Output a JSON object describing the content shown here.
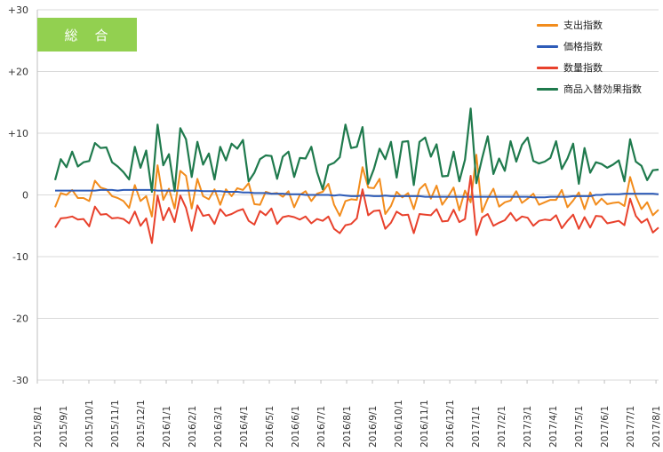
{
  "chart_data": {
    "type": "line",
    "title": "総　合",
    "ylim": [
      -30,
      30
    ],
    "y_ticks": [
      "+30",
      "+20",
      "+10",
      "0",
      "-10",
      "-20",
      "-30"
    ],
    "x_tick_labels": [
      "2015/8/1",
      "2015/9/1",
      "2015/10/1",
      "2015/11/1",
      "2015/12/1",
      "2016/1/1",
      "2016/2/1",
      "2016/3/1",
      "2016/4/1",
      "2016/5/1",
      "2016/6/1",
      "2016/7/1",
      "2016/8/1",
      "2016/9/1",
      "2016/10/1",
      "2016/11/1",
      "2016/12/1",
      "2017/1/1",
      "2017/2/1",
      "2017/3/1",
      "2017/4/1",
      "2017/5/1",
      "2017/6/1",
      "2017/7/1",
      "2017/8/1"
    ],
    "legend_position": "top-right",
    "grid": "horizontal",
    "series": [
      {
        "name": "支出指数",
        "color": "#f28c1c",
        "values": [
          -2,
          0.3,
          0,
          0.8,
          -0.5,
          -0.5,
          -1,
          2.3,
          1.2,
          0.9,
          -0.2,
          -0.5,
          -1,
          -2.1,
          1.6,
          -1,
          -0.2,
          -3.5,
          4.8,
          -0.8,
          1,
          -2.2,
          3.9,
          3.1,
          -2.2,
          2.6,
          -0.2,
          -0.7,
          0.9,
          -1.6,
          0.9,
          -0.2,
          1.1,
          0.8,
          1.9,
          -1.5,
          -1.6,
          0.5,
          0.2,
          0.3,
          -0.3,
          0.6,
          -2,
          0,
          0.6,
          -1,
          0.2,
          0.5,
          1.8,
          -1.6,
          -3.4,
          -1,
          -0.7,
          -0.8,
          4.5,
          1.2,
          1.1,
          2.6,
          -3.1,
          -1.8,
          0.5,
          -0.4,
          0.3,
          -2.3,
          0.9,
          1.8,
          -0.6,
          1.5,
          -1.6,
          -0.3,
          1.2,
          -2.5,
          0.7,
          -1.2,
          6.5,
          -2.8,
          -0.6,
          1,
          -1.9,
          -1.2,
          -0.9,
          0.6,
          -1.3,
          -0.6,
          0.2,
          -1.6,
          -1.2,
          -0.8,
          -0.8,
          0.8,
          -2,
          -0.9,
          0.4,
          -2.3,
          0.4,
          -1.6,
          -0.6,
          -1.5,
          -1.3,
          -1.2,
          -1.8,
          2.9,
          -0.2,
          -2.3,
          -1.2,
          -3.3,
          -2.4
        ]
      },
      {
        "name": "価格指数",
        "color": "#2e5cb8",
        "values": [
          0.7,
          0.7,
          0.7,
          0.7,
          0.7,
          0.7,
          0.7,
          0.7,
          0.8,
          0.8,
          0.8,
          0.7,
          0.8,
          0.8,
          0.8,
          0.8,
          0.8,
          0.8,
          0.7,
          0.7,
          0.7,
          0.7,
          0.7,
          0.7,
          0.7,
          0.7,
          0.6,
          0.6,
          0.6,
          0.6,
          0.5,
          0.5,
          0.5,
          0.4,
          0.4,
          0.3,
          0.3,
          0.3,
          0.2,
          0.2,
          0.2,
          0.1,
          0.1,
          0.1,
          0,
          0,
          0,
          0,
          0,
          -0.1,
          0,
          -0.1,
          -0.2,
          -0.2,
          -0.1,
          -0.1,
          -0.2,
          -0.2,
          -0.1,
          -0.2,
          -0.2,
          -0.2,
          -0.2,
          -0.2,
          -0.2,
          -0.3,
          -0.3,
          -0.3,
          -0.3,
          -0.3,
          -0.3,
          -0.3,
          -0.3,
          -0.3,
          -0.3,
          -0.3,
          -0.3,
          -0.3,
          -0.3,
          -0.3,
          -0.3,
          -0.3,
          -0.3,
          -0.3,
          -0.4,
          -0.4,
          -0.4,
          -0.3,
          -0.3,
          -0.3,
          -0.3,
          -0.2,
          -0.2,
          -0.2,
          -0.2,
          0,
          0,
          0.1,
          0.1,
          0.1,
          0.2,
          0.2,
          0.2,
          0.2,
          0.2,
          0.2,
          0.1
        ]
      },
      {
        "name": "数量指数",
        "color": "#e8412c",
        "values": [
          -5.3,
          -3.8,
          -3.7,
          -3.5,
          -4,
          -3.9,
          -5.1,
          -1.9,
          -3.2,
          -3.1,
          -3.8,
          -3.7,
          -3.9,
          -4.6,
          -2.7,
          -5,
          -3.8,
          -7.8,
          -0.1,
          -4.1,
          -2.1,
          -4.4,
          -0.1,
          -2.1,
          -5.8,
          -1.7,
          -3.4,
          -3.2,
          -4.7,
          -2.3,
          -3.4,
          -3.1,
          -2.6,
          -2.3,
          -4.2,
          -4.8,
          -2.6,
          -3.3,
          -2.2,
          -4.7,
          -3.6,
          -3.4,
          -3.6,
          -4,
          -3.5,
          -4.6,
          -3.9,
          -4.2,
          -3.5,
          -5.5,
          -6.2,
          -4.9,
          -4.7,
          -3.8,
          0.9,
          -3.3,
          -2.6,
          -2.5,
          -5.5,
          -4.5,
          -2.7,
          -3.3,
          -3.2,
          -6.2,
          -3.1,
          -3.2,
          -3.3,
          -2.3,
          -4.3,
          -4.2,
          -2.4,
          -4.4,
          -3.9,
          3.1,
          -6.5,
          -3.7,
          -3.1,
          -5,
          -4.5,
          -4.1,
          -2.9,
          -4.2,
          -3.5,
          -3.7,
          -5,
          -4.2,
          -4,
          -4.1,
          -3.3,
          -5.4,
          -4.2,
          -3.2,
          -5.5,
          -3.6,
          -5.3,
          -3.4,
          -3.5,
          -4.6,
          -4.4,
          -4.2,
          -4.9,
          -0.6,
          -3.4,
          -4.5,
          -3.9,
          -6.1,
          -5.3
        ]
      },
      {
        "name": "商品入替効果指数",
        "color": "#1f7a4d",
        "values": [
          2.4,
          5.8,
          4.5,
          7,
          4.6,
          5.3,
          5.5,
          8.4,
          7.6,
          7.7,
          5.3,
          4.6,
          3.7,
          2.5,
          7.8,
          4.4,
          7.2,
          0.5,
          11.4,
          4.8,
          6.6,
          0.6,
          10.8,
          9,
          2.9,
          8.6,
          4.9,
          6.7,
          2.5,
          7.8,
          5.6,
          8.3,
          7.5,
          8.9,
          2.2,
          3.6,
          5.8,
          6.4,
          6.3,
          2.6,
          6.2,
          7,
          2.9,
          6,
          5.9,
          7.8,
          3.7,
          0.9,
          4.8,
          5.2,
          6.1,
          11.4,
          7.6,
          7.8,
          11,
          1.8,
          4.2,
          7.5,
          5.8,
          8.6,
          2.8,
          8.6,
          8.7,
          1.6,
          8.6,
          9.3,
          6.2,
          8.2,
          3,
          3.1,
          7,
          2.2,
          5.7,
          14,
          1.9,
          5.9,
          9.5,
          3.4,
          5.9,
          3.9,
          8.7,
          5.4,
          8.1,
          9.3,
          5.5,
          5.1,
          5.4,
          6,
          8.7,
          4.2,
          5.9,
          8.3,
          1.8,
          7.6,
          3.6,
          5.3,
          5,
          4.4,
          4.9,
          5.6,
          2.2,
          9,
          5.4,
          4.7,
          2.4,
          4,
          4.1
        ]
      }
    ]
  }
}
